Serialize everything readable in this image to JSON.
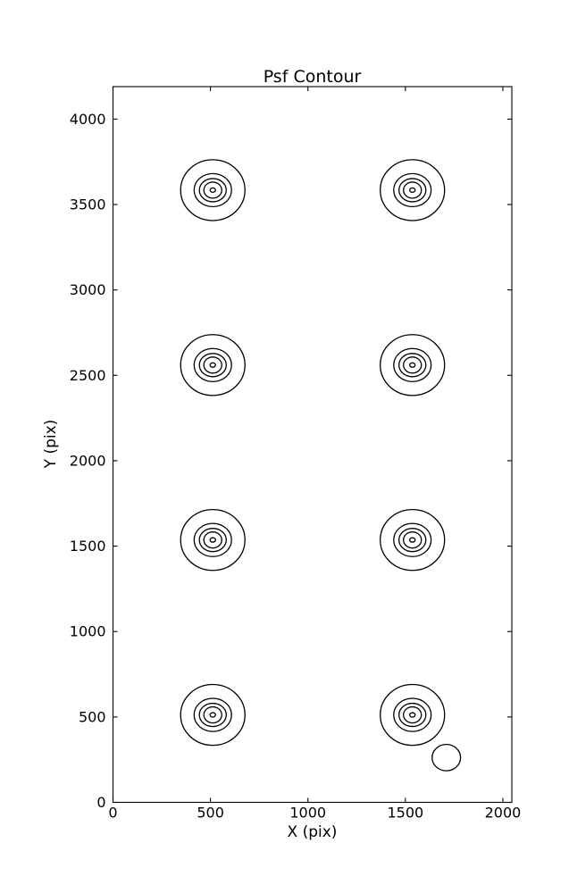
{
  "chart_data": {
    "type": "contour",
    "title": "Psf Contour",
    "xlabel": "X (pix)",
    "ylabel": "Y (pix)",
    "xlim": [
      0,
      2046
    ],
    "ylim": [
      0,
      4190
    ],
    "xticks": [
      0,
      500,
      1000,
      1500,
      2000
    ],
    "yticks": [
      0,
      500,
      1000,
      1500,
      2000,
      2500,
      3000,
      3500,
      4000
    ],
    "grid": false,
    "legend": "none",
    "line_color": "#000000",
    "background_color": "#ffffff",
    "psf_sources": [
      {
        "x": 512,
        "y": 3584
      },
      {
        "x": 1536,
        "y": 3584
      },
      {
        "x": 512,
        "y": 2560
      },
      {
        "x": 1536,
        "y": 2560
      },
      {
        "x": 512,
        "y": 1536
      },
      {
        "x": 1536,
        "y": 1536
      },
      {
        "x": 512,
        "y": 512
      },
      {
        "x": 1536,
        "y": 512
      }
    ],
    "contour_level_radii_x": [
      165,
      96,
      69,
      46,
      14
    ],
    "contour_level_radii_y": [
      178,
      97,
      68,
      47,
      13
    ],
    "extra_contour": {
      "x": 1710,
      "y": 262,
      "rx": 73,
      "ry": 77
    }
  }
}
